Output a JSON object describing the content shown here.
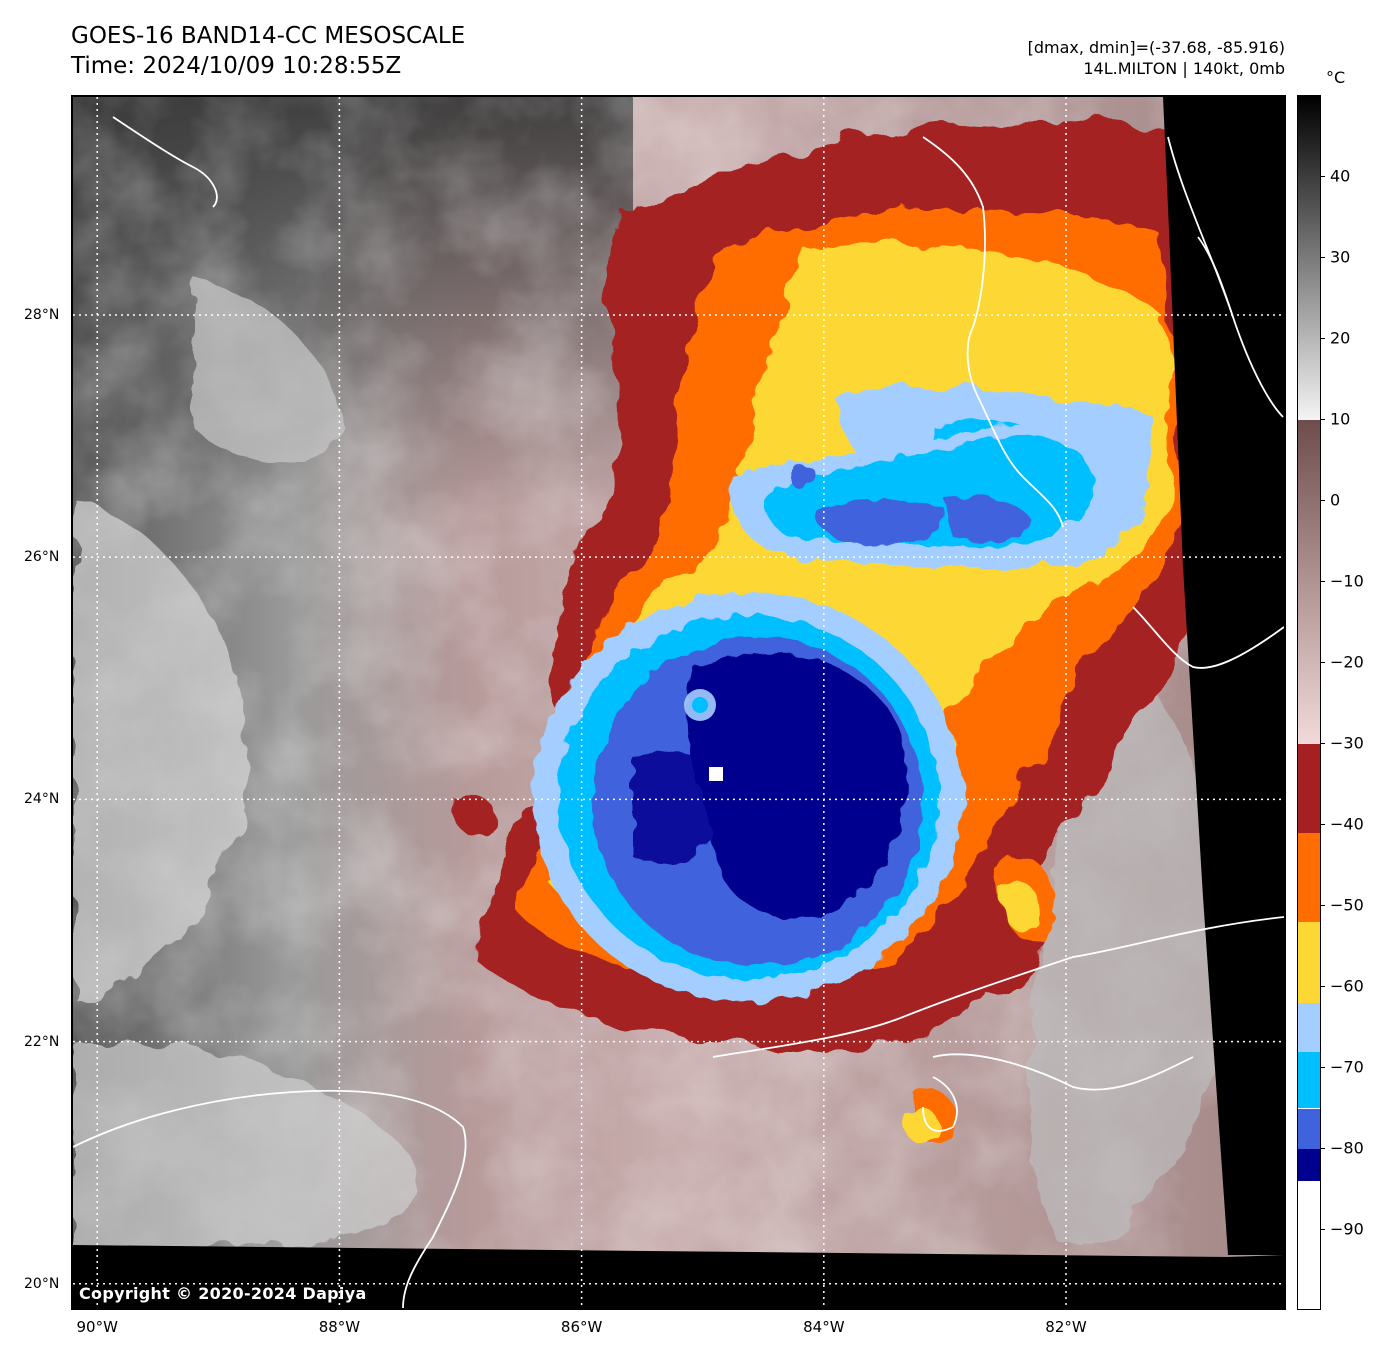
{
  "header": {
    "title_line1": "GOES-16 BAND14-CC MESOSCALE",
    "title_line2": "Time: 2024/10/09 10:28:55Z",
    "info_line1": "[dmax, dmin]=(-37.68, -85.916)",
    "info_line2": "14L.MILTON | 140kt, 0mb"
  },
  "map": {
    "copyright": "Copyright © 2020-2024 Dapiya",
    "lon_range": [
      -90.2,
      -80.2
    ],
    "lat_range": [
      19.8,
      29.8
    ],
    "x_ticks": [
      {
        "lon": -90,
        "label": "90°W"
      },
      {
        "lon": -88,
        "label": "88°W"
      },
      {
        "lon": -86,
        "label": "86°W"
      },
      {
        "lon": -84,
        "label": "84°W"
      },
      {
        "lon": -82,
        "label": "82°W"
      }
    ],
    "y_ticks": [
      {
        "lat": 28,
        "label": "28°N"
      },
      {
        "lat": 26,
        "label": "26°N"
      },
      {
        "lat": 24,
        "label": "24°N"
      },
      {
        "lat": 22,
        "label": "22°N"
      },
      {
        "lat": 20,
        "label": "20°N"
      }
    ],
    "storm_center": {
      "lon": -85.0,
      "lat": 24.2
    },
    "gridlines": true
  },
  "colorbar": {
    "unit": "°C",
    "range": [
      -100,
      50
    ],
    "ticks": [
      {
        "v": 40,
        "label": "40"
      },
      {
        "v": 30,
        "label": "30"
      },
      {
        "v": 20,
        "label": "20"
      },
      {
        "v": 10,
        "label": "10"
      },
      {
        "v": 0,
        "label": "0"
      },
      {
        "v": -10,
        "label": "−10"
      },
      {
        "v": -20,
        "label": "−20"
      },
      {
        "v": -30,
        "label": "−30"
      },
      {
        "v": -40,
        "label": "−40"
      },
      {
        "v": -50,
        "label": "−50"
      },
      {
        "v": -60,
        "label": "−60"
      },
      {
        "v": -70,
        "label": "−70"
      },
      {
        "v": -80,
        "label": "−80"
      },
      {
        "v": -90,
        "label": "−90"
      }
    ],
    "bands": [
      {
        "from": 10,
        "to": 50,
        "colors": [
          "#f4f4f4",
          "#000000"
        ]
      },
      {
        "from": -30,
        "to": 10,
        "colors": [
          "#f2dada",
          "#6e4c4c"
        ]
      },
      {
        "from": -41,
        "to": -30,
        "color": "#a52121"
      },
      {
        "from": -52,
        "to": -41,
        "color": "#ff6d00"
      },
      {
        "from": -62,
        "to": -52,
        "color": "#fdd835"
      },
      {
        "from": -68,
        "to": -62,
        "color": "#a3ceff"
      },
      {
        "from": -75,
        "to": -68,
        "color": "#00bfff"
      },
      {
        "from": -80,
        "to": -75,
        "color": "#3f62dd"
      },
      {
        "from": -84,
        "to": -80,
        "color": "#00008f"
      },
      {
        "from": -100,
        "to": -84,
        "color": "#ffffff"
      }
    ]
  }
}
